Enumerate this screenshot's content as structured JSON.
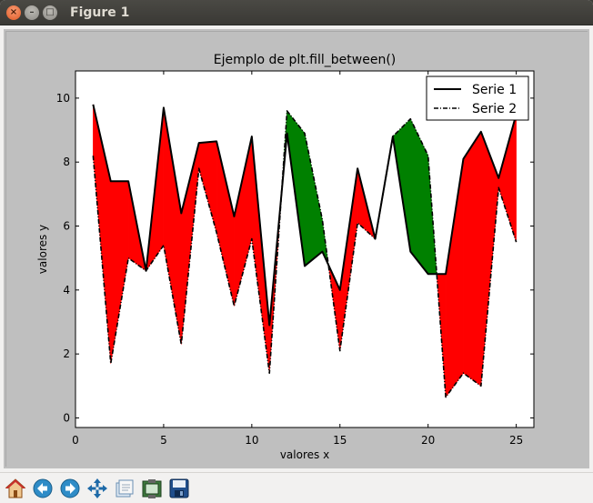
{
  "window": {
    "title": "Figure 1"
  },
  "toolbar": {
    "buttons": [
      {
        "name": "home-icon"
      },
      {
        "name": "back-arrow-icon"
      },
      {
        "name": "forward-arrow-icon"
      },
      {
        "name": "pan-icon"
      },
      {
        "name": "zoom-rect-icon"
      },
      {
        "name": "subplots-config-icon"
      },
      {
        "name": "save-icon"
      }
    ]
  },
  "colors": {
    "fill_above": "#ff0000",
    "fill_below": "#008000",
    "line": "#000000",
    "axes_bg": "#ffffff",
    "figure_bg": "#bfbfbf"
  },
  "chart_data": {
    "type": "line",
    "title": "Ejemplo de plt.fill_between()",
    "xlabel": "valores x",
    "ylabel": "valores y",
    "xlim": [
      0,
      26
    ],
    "ylim": [
      -0.3,
      10.85
    ],
    "xticks": [
      0,
      5,
      10,
      15,
      20,
      25
    ],
    "xtick_labels": [
      "0",
      "5",
      "10",
      "15",
      "20",
      "25"
    ],
    "yticks": [
      0,
      2,
      4,
      6,
      8,
      10
    ],
    "ytick_labels": [
      "0",
      "2",
      "4",
      "6",
      "8",
      "10"
    ],
    "grid": false,
    "legend": "upper right",
    "x": [
      1,
      2,
      3,
      4,
      5,
      6,
      7,
      8,
      9,
      10,
      11,
      12,
      13,
      14,
      15,
      16,
      17,
      18,
      19,
      20,
      21,
      22,
      23,
      24,
      25
    ],
    "series": [
      {
        "name": "Serie 1",
        "linestyle": "solid",
        "values": [
          9.8,
          7.4,
          7.4,
          4.6,
          9.7,
          6.4,
          8.6,
          8.65,
          6.3,
          8.8,
          2.9,
          8.9,
          4.75,
          5.2,
          4.0,
          7.8,
          5.6,
          8.8,
          5.2,
          4.5,
          4.5,
          8.1,
          8.95,
          7.5,
          9.5
        ]
      },
      {
        "name": "Serie 2",
        "linestyle": "dashdot",
        "values": [
          8.2,
          1.7,
          5.0,
          4.6,
          5.4,
          2.3,
          7.8,
          5.8,
          3.5,
          5.6,
          1.4,
          9.6,
          8.9,
          6.2,
          2.1,
          6.1,
          5.6,
          8.8,
          9.35,
          8.2,
          0.65,
          1.4,
          1.0,
          7.2,
          5.5
        ]
      }
    ],
    "fills": [
      {
        "where": "Serie 1 >= Serie 2",
        "color": "#ff0000"
      },
      {
        "where": "Serie 1 < Serie 2",
        "color": "#008000"
      }
    ]
  }
}
